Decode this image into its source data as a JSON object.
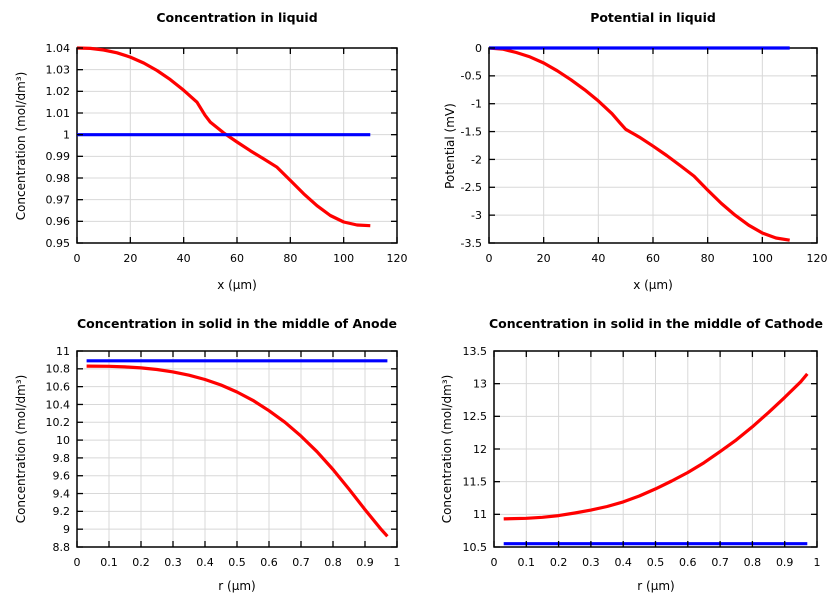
{
  "page": {
    "background": "#ffffff"
  },
  "style": {
    "grid_color": "#d8d8d8",
    "axis_color": "#000000",
    "red": "#ff0000",
    "blue": "#0000ff"
  },
  "chart_data": [
    {
      "type": "line",
      "title": "Concentration in liquid",
      "xlabel": "x (µm)",
      "ylabel": "Concentration (mol/dm³)",
      "xlim": [
        0,
        120
      ],
      "ylim": [
        0.95,
        1.04
      ],
      "grid": true,
      "legend": "none",
      "xticks": [
        0,
        20,
        40,
        60,
        80,
        100,
        120
      ],
      "xtick_labels": [
        "0",
        "20",
        "40",
        "60",
        "80",
        "100",
        "120"
      ],
      "yticks": [
        0.95,
        0.96,
        0.97,
        0.98,
        0.99,
        1.0,
        1.01,
        1.02,
        1.03,
        1.04
      ],
      "ytick_labels": [
        "0.95",
        "0.96",
        "0.97",
        "0.98",
        "0.99",
        "1",
        "1.01",
        "1.02",
        "1.03",
        "1.04"
      ],
      "series": [
        {
          "name": "red-line",
          "color": "#ff0000",
          "x": [
            0,
            5,
            10,
            15,
            20,
            25,
            30,
            35,
            40,
            45,
            48,
            50,
            55,
            60,
            65,
            70,
            75,
            80,
            85,
            90,
            95,
            100,
            105,
            110
          ],
          "y": [
            1.04,
            1.0398,
            1.0391,
            1.0378,
            1.0358,
            1.0331,
            1.0296,
            1.0254,
            1.0205,
            1.015,
            1.009,
            1.0058,
            1.0008,
            0.9966,
            0.9926,
            0.9888,
            0.985,
            0.9789,
            0.9727,
            0.9672,
            0.9627,
            0.9597,
            0.9583,
            0.958
          ]
        },
        {
          "name": "blue-line",
          "color": "#0000ff",
          "x": [
            0,
            110
          ],
          "y": [
            1.0,
            1.0
          ]
        }
      ]
    },
    {
      "type": "line",
      "title": "Potential in liquid",
      "xlabel": "x (µm)",
      "ylabel": "Potential (mV)",
      "xlim": [
        0,
        120
      ],
      "ylim": [
        -3.5,
        0
      ],
      "grid": true,
      "legend": "none",
      "xticks": [
        0,
        20,
        40,
        60,
        80,
        100,
        120
      ],
      "xtick_labels": [
        "0",
        "20",
        "40",
        "60",
        "80",
        "100",
        "120"
      ],
      "yticks": [
        -3.5,
        -3,
        -2.5,
        -2,
        -1.5,
        -1,
        -0.5,
        0
      ],
      "ytick_labels": [
        "-3.5",
        "-3",
        "-2.5",
        "-2",
        "-1.5",
        "-1",
        "-0.5",
        "0"
      ],
      "series": [
        {
          "name": "red-line",
          "color": "#ff0000",
          "x": [
            0,
            5,
            10,
            15,
            20,
            25,
            30,
            35,
            40,
            45,
            48,
            50,
            55,
            60,
            65,
            70,
            75,
            80,
            85,
            90,
            95,
            100,
            105,
            110
          ],
          "y": [
            0.0,
            -0.02,
            -0.08,
            -0.16,
            -0.27,
            -0.41,
            -0.57,
            -0.75,
            -0.95,
            -1.18,
            -1.35,
            -1.46,
            -1.6,
            -1.76,
            -1.93,
            -2.11,
            -2.3,
            -2.55,
            -2.79,
            -3.0,
            -3.18,
            -3.32,
            -3.41,
            -3.45
          ]
        },
        {
          "name": "blue-line",
          "color": "#0000ff",
          "x": [
            0,
            110
          ],
          "y": [
            0.0,
            0.0
          ]
        }
      ]
    },
    {
      "type": "line",
      "title": "Concentration in solid in the middle of Anode",
      "xlabel": "r (µm)",
      "ylabel": "Concentration (mol/dm³)",
      "xlim": [
        0,
        1
      ],
      "ylim": [
        8.8,
        11
      ],
      "grid": true,
      "legend": "none",
      "xticks": [
        0,
        0.1,
        0.2,
        0.3,
        0.4,
        0.5,
        0.6,
        0.7,
        0.8,
        0.9,
        1
      ],
      "xtick_labels": [
        "0",
        "0.1",
        "0.2",
        "0.3",
        "0.4",
        "0.5",
        "0.6",
        "0.7",
        "0.8",
        "0.9",
        "1"
      ],
      "yticks": [
        8.8,
        9,
        9.2,
        9.4,
        9.6,
        9.8,
        10,
        10.2,
        10.4,
        10.6,
        10.8,
        11
      ],
      "ytick_labels": [
        "8.8",
        "9",
        "9.2",
        "9.4",
        "9.6",
        "9.8",
        "10",
        "10.2",
        "10.4",
        "10.6",
        "10.8",
        "11"
      ],
      "series": [
        {
          "name": "red-line",
          "color": "#ff0000",
          "x": [
            0.03,
            0.1,
            0.15,
            0.2,
            0.25,
            0.3,
            0.35,
            0.4,
            0.45,
            0.5,
            0.55,
            0.6,
            0.65,
            0.7,
            0.75,
            0.8,
            0.85,
            0.9,
            0.95,
            0.97
          ],
          "y": [
            10.83,
            10.828,
            10.821,
            10.81,
            10.792,
            10.765,
            10.728,
            10.68,
            10.618,
            10.54,
            10.445,
            10.33,
            10.2,
            10.045,
            9.87,
            9.67,
            9.45,
            9.22,
            9.0,
            8.92
          ]
        },
        {
          "name": "blue-line",
          "color": "#0000ff",
          "x": [
            0.03,
            0.97
          ],
          "y": [
            10.89,
            10.89
          ]
        }
      ]
    },
    {
      "type": "line",
      "title": "Concentration in solid in the middle of Cathode",
      "xlabel": "r (µm)",
      "ylabel": "Concentration (mol/dm³)",
      "xlim": [
        0,
        1
      ],
      "ylim": [
        10.5,
        13.5
      ],
      "grid": true,
      "legend": "none",
      "xticks": [
        0,
        0.1,
        0.2,
        0.3,
        0.4,
        0.5,
        0.6,
        0.7,
        0.8,
        0.9,
        1
      ],
      "xtick_labels": [
        "0",
        "0.1",
        "0.2",
        "0.3",
        "0.4",
        "0.5",
        "0.6",
        "0.7",
        "0.8",
        "0.9",
        "1"
      ],
      "yticks": [
        10.5,
        11,
        11.5,
        12,
        12.5,
        13,
        13.5
      ],
      "ytick_labels": [
        "10.5",
        "11",
        "11.5",
        "12",
        "12.5",
        "13",
        "13.5"
      ],
      "series": [
        {
          "name": "red-line",
          "color": "#ff0000",
          "x": [
            0.03,
            0.1,
            0.15,
            0.2,
            0.25,
            0.3,
            0.35,
            0.4,
            0.45,
            0.5,
            0.55,
            0.6,
            0.65,
            0.7,
            0.75,
            0.8,
            0.85,
            0.9,
            0.95,
            0.97
          ],
          "y": [
            10.93,
            10.94,
            10.955,
            10.98,
            11.02,
            11.065,
            11.12,
            11.19,
            11.28,
            11.39,
            11.51,
            11.64,
            11.79,
            11.96,
            12.14,
            12.34,
            12.56,
            12.79,
            13.03,
            13.15
          ]
        },
        {
          "name": "blue-line",
          "color": "#0000ff",
          "x": [
            0.03,
            0.97
          ],
          "y": [
            10.55,
            10.55
          ]
        }
      ]
    }
  ]
}
